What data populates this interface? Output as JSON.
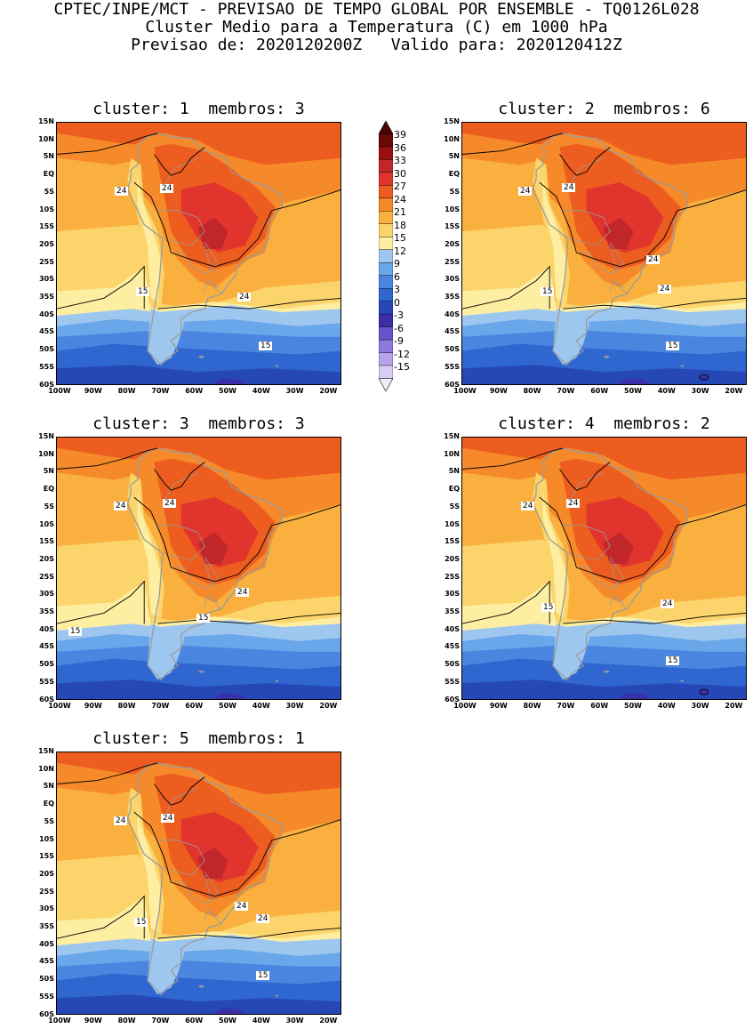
{
  "header": {
    "line1": "CPTEC/INPE/MCT - PREVISAO DE TEMPO GLOBAL POR ENSEMBLE - TQ0126L028",
    "line2": "Cluster Medio para a Temperatura (C) em 1000 hPa",
    "line3": "Previsao de: 2020120200Z   Valido para: 2020120412Z"
  },
  "colors": {
    "t39": "#6a0808",
    "t36": "#9a1010",
    "t33": "#c0262a",
    "t30": "#e0342c",
    "t27": "#ec5d1f",
    "t24": "#f6892a",
    "t21": "#f9b03e",
    "t18": "#fbd56b",
    "t15": "#fdeea2",
    "t12": "#9ec7f0",
    "t9": "#6aa6ea",
    "t6": "#4a86e0",
    "t3": "#2f66cf",
    "t0": "#2548b6",
    "tm3": "#3a2fa6",
    "tm6": "#6a52cc",
    "tm9": "#8f78de",
    "tm12": "#b6a3ea",
    "tm15": "#d8ccf4",
    "coast": "#9b9b9b"
  },
  "colorbar": {
    "labels": [
      "39",
      "36",
      "33",
      "30",
      "27",
      "24",
      "21",
      "18",
      "15",
      "12",
      "9",
      "6",
      "3",
      "0",
      "-3",
      "-6",
      "-9",
      "-12",
      "-15"
    ]
  },
  "axes": {
    "lat_labels": [
      "15N",
      "10N",
      "5N",
      "EQ",
      "5S",
      "10S",
      "15S",
      "20S",
      "25S",
      "30S",
      "35S",
      "40S",
      "45S",
      "50S",
      "55S",
      "60S"
    ],
    "lon_labels": [
      "100W",
      "90W",
      "80W",
      "70W",
      "60W",
      "50W",
      "40W",
      "30W",
      "20W"
    ]
  },
  "panels": [
    {
      "title": "cluster: 1  membros: 3",
      "contour_labels": [
        "24",
        "24",
        "24",
        "15",
        "15"
      ]
    },
    {
      "title": "cluster: 2  membros: 6",
      "contour_labels": [
        "24",
        "24",
        "24",
        "24",
        "15",
        "15"
      ]
    },
    {
      "title": "cluster: 3  membros: 3",
      "contour_labels": [
        "24",
        "24",
        "24",
        "15",
        "15"
      ]
    },
    {
      "title": "cluster: 4  membros: 2",
      "contour_labels": [
        "24",
        "24",
        "24",
        "15",
        "15"
      ]
    },
    {
      "title": "cluster: 5  membros: 1",
      "contour_labels": [
        "24",
        "24",
        "24",
        "24",
        "15",
        "15"
      ]
    }
  ]
}
